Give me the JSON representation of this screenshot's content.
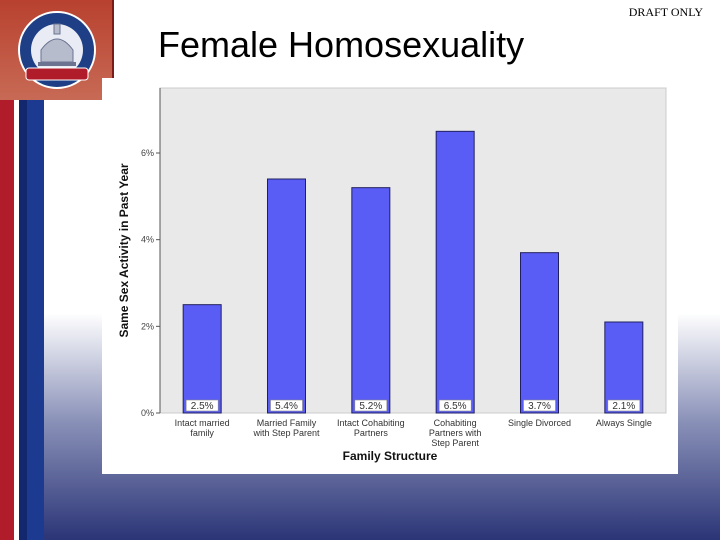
{
  "header": {
    "draft_label": "DRAFT ONLY",
    "title": "Female Homosexuality"
  },
  "logo": {
    "org_text": "FAMILY RESEARCH COUNCIL",
    "anniversary_text": "1983 25 Years 2008"
  },
  "colors": {
    "bar": "#5a5cf6",
    "plot_bg": "#e9e9e9",
    "flag_red": "#b01c2a",
    "flag_blue": "#1c3a8f"
  },
  "chart_data": {
    "type": "bar",
    "title": "",
    "xlabel": "Family Structure",
    "ylabel": "Same Sex Activity in Past Year",
    "categories": [
      [
        "Intact married",
        "family"
      ],
      [
        "Married Family",
        "with Step Parent"
      ],
      [
        "Intact Cohabiting",
        "Partners"
      ],
      [
        "Cohabiting",
        "Partners with",
        "Step Parent"
      ],
      [
        "Single Divorced"
      ],
      [
        "Always Single"
      ]
    ],
    "values": [
      2.5,
      5.4,
      5.2,
      6.5,
      3.7,
      2.1
    ],
    "data_labels": [
      "2.5%",
      "5.4%",
      "5.2%",
      "6.5%",
      "3.7%",
      "2.1%"
    ],
    "y_ticks": [
      0,
      2,
      4,
      6
    ],
    "y_tick_labels": [
      "0%",
      "2%",
      "4%",
      "6%"
    ],
    "ylim": [
      0,
      7.5
    ],
    "grid": false,
    "legend": "none"
  }
}
